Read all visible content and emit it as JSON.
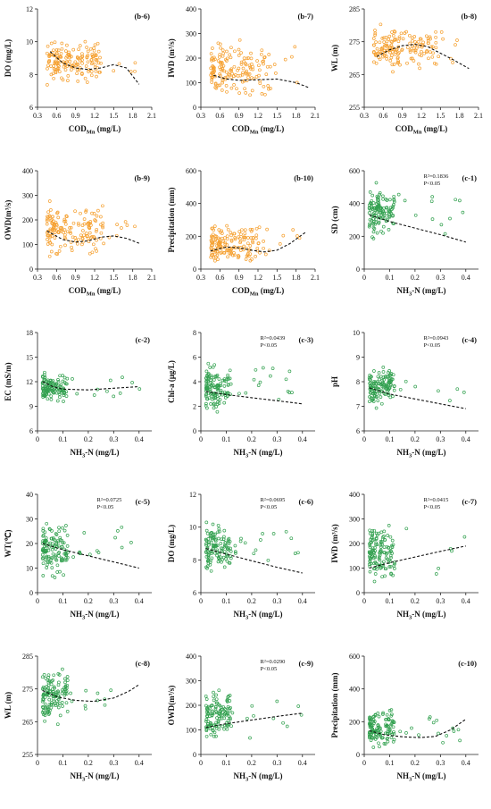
{
  "layout": {
    "rows": 5,
    "cols": 3
  },
  "panels": [
    {
      "tag": "(b-6)",
      "ylabel": "DO (mg/L)",
      "xlabel_main": "COD",
      "xlabel_sub": "Mn",
      "xlabel_unit": " (mg/L)",
      "xlim": [
        0.3,
        2.1
      ],
      "xticks": [
        0.3,
        0.6,
        0.9,
        1.2,
        1.5,
        1.8,
        2.1
      ],
      "ylim": [
        6,
        12
      ],
      "yticks": [
        6,
        8,
        10,
        12
      ],
      "color": "#f5a030",
      "seed": 61,
      "cloud": {
        "x": [
          0.45,
          1.3
        ],
        "y": [
          7,
          10.5
        ],
        "n": 160
      },
      "trend": [
        [
          0.5,
          9.4
        ],
        [
          0.7,
          8.7
        ],
        [
          0.9,
          8.4
        ],
        [
          1.1,
          8.3
        ],
        [
          1.3,
          8.4
        ],
        [
          1.5,
          8.6
        ],
        [
          1.7,
          8.4
        ],
        [
          1.9,
          7.4
        ]
      ]
    },
    {
      "tag": "(b-7)",
      "ylabel": "IWD (m³/s)",
      "xlabel_main": "COD",
      "xlabel_sub": "Mn",
      "xlabel_unit": " (mg/L)",
      "xlim": [
        0.3,
        2.1
      ],
      "xticks": [
        0.3,
        0.6,
        0.9,
        1.2,
        1.5,
        1.8,
        2.1
      ],
      "ylim": [
        0,
        400
      ],
      "yticks": [
        0,
        100,
        200,
        300,
        400
      ],
      "color": "#f5a030",
      "seed": 72,
      "cloud": {
        "x": [
          0.45,
          1.4
        ],
        "y": [
          10,
          300
        ],
        "n": 160
      },
      "trend": [
        [
          0.5,
          130
        ],
        [
          0.7,
          115
        ],
        [
          0.9,
          110
        ],
        [
          1.2,
          112
        ],
        [
          1.5,
          115
        ],
        [
          1.8,
          100
        ],
        [
          2.0,
          80
        ]
      ]
    },
    {
      "tag": "(b-8)",
      "ylabel": "WL (m)",
      "xlabel_main": "COD",
      "xlabel_sub": "Mn",
      "xlabel_unit": " (mg/L)",
      "xlim": [
        0.3,
        2.1
      ],
      "xticks": [
        0.3,
        0.6,
        0.9,
        1.2,
        1.5,
        1.8,
        2.1
      ],
      "ylim": [
        255,
        285
      ],
      "yticks": [
        255,
        265,
        275,
        285
      ],
      "color": "#f5a030",
      "seed": 83,
      "cloud": {
        "x": [
          0.45,
          1.45
        ],
        "y": [
          265,
          281
        ],
        "n": 160
      },
      "trend": [
        [
          0.5,
          270.5
        ],
        [
          0.7,
          272.5
        ],
        [
          0.9,
          273.8
        ],
        [
          1.1,
          274.2
        ],
        [
          1.3,
          273.5
        ],
        [
          1.5,
          271.5
        ],
        [
          1.7,
          269.5
        ],
        [
          1.95,
          266.8
        ]
      ]
    },
    {
      "tag": "(b-9)",
      "ylabel": "OWD(m³/s)",
      "xlabel_main": "COD",
      "xlabel_sub": "Mn",
      "xlabel_unit": " (mg/L)",
      "xlim": [
        0.3,
        2.1
      ],
      "xticks": [
        0.3,
        0.6,
        0.9,
        1.2,
        1.5,
        1.8,
        2.1
      ],
      "ylim": [
        0,
        400
      ],
      "yticks": [
        0,
        100,
        200,
        300,
        400
      ],
      "color": "#f5a030",
      "seed": 94,
      "cloud": {
        "x": [
          0.45,
          1.35
        ],
        "y": [
          30,
          300
        ],
        "n": 160
      },
      "trend": [
        [
          0.45,
          155
        ],
        [
          0.7,
          120
        ],
        [
          0.9,
          110
        ],
        [
          1.1,
          115
        ],
        [
          1.3,
          130
        ],
        [
          1.5,
          135
        ],
        [
          1.7,
          125
        ],
        [
          1.9,
          105
        ]
      ]
    },
    {
      "tag": "(b-10)",
      "ylabel": "Precipitation (mm)",
      "xlabel_main": "COD",
      "xlabel_sub": "Mn",
      "xlabel_unit": " (mg/L)",
      "xlim": [
        0.3,
        2.1
      ],
      "xticks": [
        0.3,
        0.6,
        0.9,
        1.2,
        1.5,
        1.8,
        2.1
      ],
      "ylim": [
        0,
        600
      ],
      "yticks": [
        0,
        200,
        400,
        600
      ],
      "color": "#f5a030",
      "seed": 105,
      "cloud": {
        "x": [
          0.45,
          1.3
        ],
        "y": [
          5,
          300
        ],
        "n": 160
      },
      "trend": [
        [
          0.45,
          110
        ],
        [
          0.7,
          135
        ],
        [
          0.9,
          130
        ],
        [
          1.1,
          115
        ],
        [
          1.3,
          105
        ],
        [
          1.5,
          115
        ],
        [
          1.7,
          155
        ],
        [
          1.95,
          225
        ]
      ]
    },
    {
      "tag": "(c-1)",
      "stats": [
        "R²=0.1836",
        "P<0.05"
      ],
      "ylabel": "SD (cm)",
      "xlabel_main": "NH",
      "xlabel_sub": "3",
      "xlabel_unit": "-N (mg/L)",
      "xlim": [
        0,
        0.45
      ],
      "xticks": [
        0,
        0.1,
        0.2,
        0.3,
        0.4
      ],
      "ylim": [
        0,
        600
      ],
      "yticks": [
        0,
        200,
        400,
        600
      ],
      "color": "#33a150",
      "seed": 116,
      "cloud": {
        "x": [
          0.02,
          0.12
        ],
        "y": [
          150,
          550
        ],
        "n": 140
      },
      "trend": [
        [
          0.02,
          330
        ],
        [
          0.1,
          290
        ],
        [
          0.2,
          250
        ],
        [
          0.3,
          210
        ],
        [
          0.4,
          165
        ]
      ]
    },
    {
      "tag": "(c-2)",
      "ylabel": "EC (mS/m)",
      "xlabel_main": "NH",
      "xlabel_sub": "3",
      "xlabel_unit": "-N (mg/L)",
      "xlim": [
        0,
        0.45
      ],
      "xticks": [
        0,
        0.1,
        0.2,
        0.3,
        0.4
      ],
      "ylim": [
        6,
        18
      ],
      "yticks": [
        6,
        9,
        12,
        15,
        18
      ],
      "color": "#33a150",
      "seed": 127,
      "cloud": {
        "x": [
          0.02,
          0.12
        ],
        "y": [
          9,
          13.5
        ],
        "n": 140
      },
      "trend": [
        [
          0.02,
          12.0
        ],
        [
          0.06,
          11.4
        ],
        [
          0.1,
          11.1
        ],
        [
          0.2,
          11.0
        ],
        [
          0.3,
          11.2
        ],
        [
          0.4,
          11.4
        ]
      ]
    },
    {
      "tag": "(c-3)",
      "stats": [
        "R²=0.0439",
        "P<0.05"
      ],
      "ylabel": "Chl-a (μg/L)",
      "xlabel_main": "NH",
      "xlabel_sub": "3",
      "xlabel_unit": "-N (mg/L)",
      "xlim": [
        0,
        0.45
      ],
      "xticks": [
        0,
        0.1,
        0.2,
        0.3,
        0.4
      ],
      "ylim": [
        0,
        8
      ],
      "yticks": [
        0,
        2,
        4,
        6,
        8
      ],
      "color": "#33a150",
      "seed": 138,
      "cloud": {
        "x": [
          0.02,
          0.12
        ],
        "y": [
          1,
          6
        ],
        "n": 140
      },
      "trend": [
        [
          0.02,
          3.2
        ],
        [
          0.1,
          2.95
        ],
        [
          0.2,
          2.7
        ],
        [
          0.3,
          2.45
        ],
        [
          0.4,
          2.2
        ]
      ]
    },
    {
      "tag": "(c-4)",
      "stats": [
        "R²=0.0943",
        "P<0.05"
      ],
      "ylabel": "pH",
      "xlabel_main": "NH",
      "xlabel_sub": "3",
      "xlabel_unit": "-N (mg/L)",
      "xlim": [
        0,
        0.45
      ],
      "xticks": [
        0,
        0.1,
        0.2,
        0.3,
        0.4
      ],
      "ylim": [
        6,
        10
      ],
      "yticks": [
        6,
        7,
        8,
        9,
        10
      ],
      "color": "#33a150",
      "seed": 149,
      "cloud": {
        "x": [
          0.02,
          0.12
        ],
        "y": [
          6.8,
          8.8
        ],
        "n": 140
      },
      "trend": [
        [
          0.02,
          7.75
        ],
        [
          0.1,
          7.5
        ],
        [
          0.2,
          7.3
        ],
        [
          0.3,
          7.1
        ],
        [
          0.4,
          6.9
        ]
      ]
    },
    {
      "tag": "(c-5)",
      "stats": [
        "R²=0.0725",
        "P<0.05"
      ],
      "ylabel": "WT(℃)",
      "xlabel_main": "NH",
      "xlabel_sub": "3",
      "xlabel_unit": "-N (mg/L)",
      "xlim": [
        0,
        0.45
      ],
      "xticks": [
        0,
        0.1,
        0.2,
        0.3,
        0.4
      ],
      "ylim": [
        0,
        40
      ],
      "yticks": [
        0,
        10,
        20,
        30,
        40
      ],
      "color": "#33a150",
      "seed": 160,
      "cloud": {
        "x": [
          0.02,
          0.12
        ],
        "y": [
          4,
          31
        ],
        "n": 140
      },
      "trend": [
        [
          0.02,
          20
        ],
        [
          0.1,
          17.5
        ],
        [
          0.2,
          15
        ],
        [
          0.3,
          12.5
        ],
        [
          0.4,
          10
        ]
      ]
    },
    {
      "tag": "(c-6)",
      "stats": [
        "R²=0.0695",
        "P<0.05"
      ],
      "ylabel": "DO (mg/L)",
      "xlabel_main": "NH",
      "xlabel_sub": "3",
      "xlabel_unit": "-N (mg/L)",
      "xlim": [
        0,
        0.45
      ],
      "xticks": [
        0,
        0.1,
        0.2,
        0.3,
        0.4
      ],
      "ylim": [
        6,
        12
      ],
      "yticks": [
        6,
        8,
        10,
        12
      ],
      "color": "#33a150",
      "seed": 171,
      "cloud": {
        "x": [
          0.02,
          0.12
        ],
        "y": [
          7,
          10.5
        ],
        "n": 140
      },
      "trend": [
        [
          0.02,
          8.7
        ],
        [
          0.1,
          8.35
        ],
        [
          0.2,
          7.95
        ],
        [
          0.3,
          7.55
        ],
        [
          0.4,
          7.2
        ]
      ]
    },
    {
      "tag": "(c-7)",
      "stats": [
        "R²=0.0415",
        "P<0.05"
      ],
      "ylabel": "IWD (m³/s)",
      "xlabel_main": "NH",
      "xlabel_sub": "3",
      "xlabel_unit": "-N (mg/L)",
      "xlim": [
        0,
        0.45
      ],
      "xticks": [
        0,
        0.1,
        0.2,
        0.3,
        0.4
      ],
      "ylim": [
        0,
        400
      ],
      "yticks": [
        0,
        100,
        200,
        300,
        400
      ],
      "color": "#33a150",
      "seed": 182,
      "cloud": {
        "x": [
          0.02,
          0.12
        ],
        "y": [
          20,
          300
        ],
        "n": 140
      },
      "trend": [
        [
          0.02,
          100
        ],
        [
          0.1,
          122
        ],
        [
          0.2,
          145
        ],
        [
          0.3,
          168
        ],
        [
          0.4,
          190
        ]
      ]
    },
    {
      "tag": "(c-8)",
      "ylabel": "WL (m)",
      "xlabel_main": "NH",
      "xlabel_sub": "3",
      "xlabel_unit": "-N (mg/L)",
      "xlim": [
        0,
        0.45
      ],
      "xticks": [
        0,
        0.1,
        0.2,
        0.3,
        0.4
      ],
      "ylim": [
        255,
        285
      ],
      "yticks": [
        255,
        265,
        275,
        285
      ],
      "color": "#33a150",
      "seed": 193,
      "cloud": {
        "x": [
          0.02,
          0.12
        ],
        "y": [
          264,
          282
        ],
        "n": 140
      },
      "trend": [
        [
          0.02,
          274.5
        ],
        [
          0.08,
          272.5
        ],
        [
          0.15,
          271.5
        ],
        [
          0.22,
          271.2
        ],
        [
          0.3,
          272.2
        ],
        [
          0.36,
          274.3
        ],
        [
          0.4,
          276.3
        ]
      ]
    },
    {
      "tag": "(c-9)",
      "stats": [
        "R²=0.0290",
        "P<0.05"
      ],
      "ylabel": "OWD(m³/s)",
      "xlabel_main": "NH",
      "xlabel_sub": "3",
      "xlabel_unit": "-N (mg/L)",
      "xlim": [
        0,
        0.45
      ],
      "xticks": [
        0,
        0.1,
        0.2,
        0.3,
        0.4
      ],
      "ylim": [
        0,
        400
      ],
      "yticks": [
        0,
        100,
        200,
        300,
        400
      ],
      "color": "#33a150",
      "seed": 204,
      "cloud": {
        "x": [
          0.02,
          0.12
        ],
        "y": [
          30,
          280
        ],
        "n": 140
      },
      "trend": [
        [
          0.02,
          110
        ],
        [
          0.1,
          125
        ],
        [
          0.2,
          140
        ],
        [
          0.3,
          155
        ],
        [
          0.4,
          168
        ]
      ]
    },
    {
      "tag": "(c-10)",
      "ylabel": "Precipitation (mm)",
      "xlabel_main": "NH",
      "xlabel_sub": "3",
      "xlabel_unit": "-N (mg/L)",
      "xlim": [
        0,
        0.45
      ],
      "xticks": [
        0,
        0.1,
        0.2,
        0.3,
        0.4
      ],
      "ylim": [
        0,
        600
      ],
      "yticks": [
        0,
        200,
        400,
        600
      ],
      "color": "#33a150",
      "seed": 215,
      "cloud": {
        "x": [
          0.02,
          0.12
        ],
        "y": [
          5,
          300
        ],
        "n": 140
      },
      "trend": [
        [
          0.02,
          145
        ],
        [
          0.08,
          120
        ],
        [
          0.15,
          108
        ],
        [
          0.22,
          103
        ],
        [
          0.28,
          110
        ],
        [
          0.34,
          150
        ],
        [
          0.4,
          215
        ]
      ]
    }
  ],
  "chart_data": [
    {
      "type": "scatter",
      "title": "(b-6)",
      "xlabel": "CODMn (mg/L)",
      "ylabel": "DO (mg/L)",
      "xlim": [
        0.3,
        2.1
      ],
      "ylim": [
        6,
        12
      ],
      "trend": "polynomial",
      "points_approx": "dense cluster x 0.45–1.3, y 7–10.5"
    },
    {
      "type": "scatter",
      "title": "(b-7)",
      "xlabel": "CODMn (mg/L)",
      "ylabel": "IWD (m3/s)",
      "xlim": [
        0.3,
        2.1
      ],
      "ylim": [
        0,
        400
      ],
      "trend": "polynomial"
    },
    {
      "type": "scatter",
      "title": "(b-8)",
      "xlabel": "CODMn (mg/L)",
      "ylabel": "WL (m)",
      "xlim": [
        0.3,
        2.1
      ],
      "ylim": [
        255,
        285
      ],
      "trend": "polynomial"
    },
    {
      "type": "scatter",
      "title": "(b-9)",
      "xlabel": "CODMn (mg/L)",
      "ylabel": "OWD(m3/s)",
      "xlim": [
        0.3,
        2.1
      ],
      "ylim": [
        0,
        400
      ],
      "trend": "polynomial"
    },
    {
      "type": "scatter",
      "title": "(b-10)",
      "xlabel": "CODMn (mg/L)",
      "ylabel": "Precipitation (mm)",
      "xlim": [
        0.3,
        2.1
      ],
      "ylim": [
        0,
        600
      ],
      "trend": "polynomial"
    },
    {
      "type": "scatter",
      "title": "(c-1)",
      "xlabel": "NH3-N (mg/L)",
      "ylabel": "SD (cm)",
      "xlim": [
        0,
        0.45
      ],
      "ylim": [
        0,
        600
      ],
      "trend": "linear",
      "r2": 0.1836,
      "p": "<0.05"
    },
    {
      "type": "scatter",
      "title": "(c-2)",
      "xlabel": "NH3-N (mg/L)",
      "ylabel": "EC (mS/m)",
      "xlim": [
        0,
        0.45
      ],
      "ylim": [
        6,
        18
      ],
      "trend": "polynomial"
    },
    {
      "type": "scatter",
      "title": "(c-3)",
      "xlabel": "NH3-N (mg/L)",
      "ylabel": "Chl-a (μg/L)",
      "xlim": [
        0,
        0.45
      ],
      "ylim": [
        0,
        8
      ],
      "trend": "linear",
      "r2": 0.0439,
      "p": "<0.05"
    },
    {
      "type": "scatter",
      "title": "(c-4)",
      "xlabel": "NH3-N (mg/L)",
      "ylabel": "pH",
      "xlim": [
        0,
        0.45
      ],
      "ylim": [
        6,
        10
      ],
      "trend": "linear",
      "r2": 0.0943,
      "p": "<0.05"
    },
    {
      "type": "scatter",
      "title": "(c-5)",
      "xlabel": "NH3-N (mg/L)",
      "ylabel": "WT(℃)",
      "xlim": [
        0,
        0.45
      ],
      "ylim": [
        0,
        40
      ],
      "trend": "linear",
      "r2": 0.0725,
      "p": "<0.05"
    },
    {
      "type": "scatter",
      "title": "(c-6)",
      "xlabel": "NH3-N (mg/L)",
      "ylabel": "DO (mg/L)",
      "xlim": [
        0,
        0.45
      ],
      "ylim": [
        6,
        12
      ],
      "trend": "linear",
      "r2": 0.0695,
      "p": "<0.05"
    },
    {
      "type": "scatter",
      "title": "(c-7)",
      "xlabel": "NH3-N (mg/L)",
      "ylabel": "IWD (m3/s)",
      "xlim": [
        0,
        0.45
      ],
      "ylim": [
        0,
        400
      ],
      "trend": "linear",
      "r2": 0.0415,
      "p": "<0.05"
    },
    {
      "type": "scatter",
      "title": "(c-8)",
      "xlabel": "NH3-N (mg/L)",
      "ylabel": "WL (m)",
      "xlim": [
        0,
        0.45
      ],
      "ylim": [
        255,
        285
      ],
      "trend": "polynomial"
    },
    {
      "type": "scatter",
      "title": "(c-9)",
      "xlabel": "NH3-N (mg/L)",
      "ylabel": "OWD(m3/s)",
      "xlim": [
        0,
        0.45
      ],
      "ylim": [
        0,
        400
      ],
      "trend": "linear",
      "r2": 0.029,
      "p": "<0.05"
    },
    {
      "type": "scatter",
      "title": "(c-10)",
      "xlabel": "NH3-N (mg/L)",
      "ylabel": "Precipitation (mm)",
      "xlim": [
        0,
        0.45
      ],
      "ylim": [
        0,
        600
      ],
      "trend": "polynomial"
    }
  ]
}
